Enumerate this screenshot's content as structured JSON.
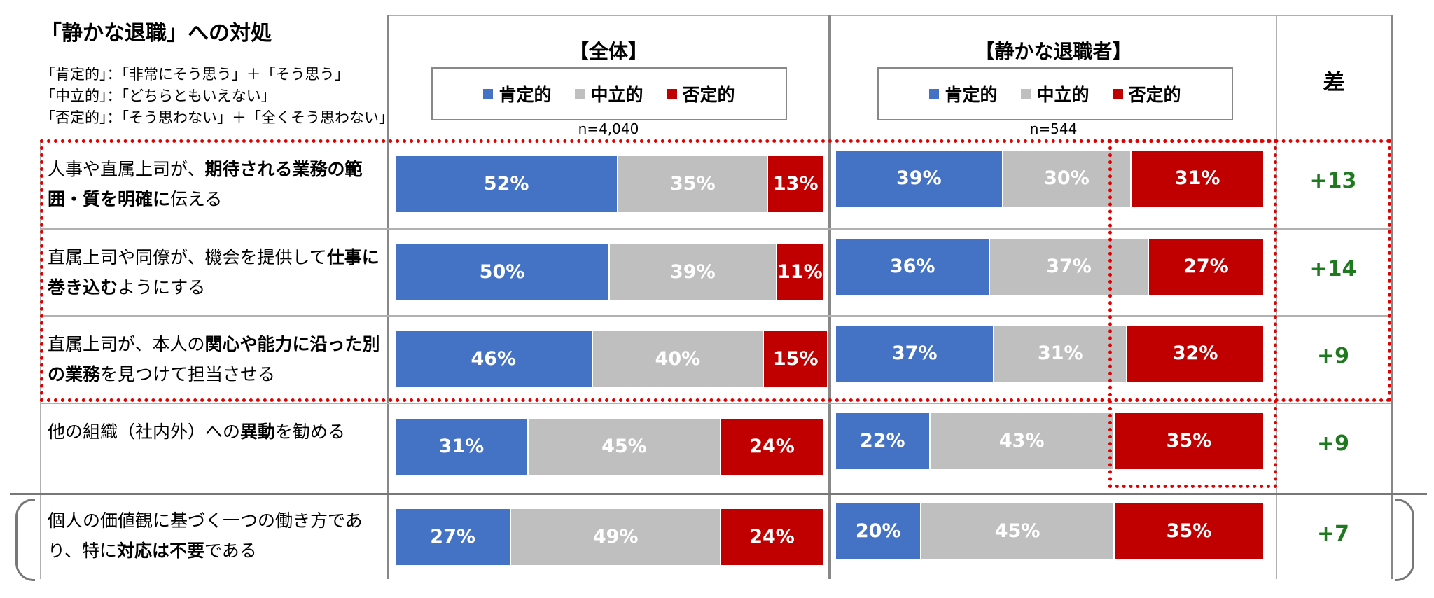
{
  "title": "「静かな退職」への対処",
  "definitions": [
    "「肯定的」：「非常にそう思う」＋「そう思う」",
    "「中立的」：「どちらともいえない」",
    "「否定的」：「そう思わない」＋「全くそう思わない」"
  ],
  "legend": {
    "positive": "肯定的",
    "neutral": "中立的",
    "negative": "否定的"
  },
  "colors": {
    "positive": "#4472c4",
    "neutral": "#bfbfbf",
    "negative": "#c00000",
    "diff": "#1f7a1f",
    "highlight": "#e00000"
  },
  "panels": [
    {
      "title": "【全体】",
      "n": "n=4,040"
    },
    {
      "title": "【静かな退職者】",
      "n": "n=544"
    }
  ],
  "diff_header": "差",
  "rows": [
    {
      "label_parts": [
        [
          "人事や直属上司が、",
          false
        ],
        [
          "期待される業務の",
          true
        ],
        [
          "範囲・質を明確に",
          true
        ],
        [
          "伝える",
          false
        ]
      ]
    },
    {
      "label_parts": [
        [
          "直属上司や同僚が、機会を提供して",
          false
        ],
        [
          "仕事に巻き込む",
          true
        ],
        [
          "ようにする",
          false
        ]
      ]
    },
    {
      "label_parts": [
        [
          "直属上司が、本人の",
          false
        ],
        [
          "関心や能力に沿った別の業務",
          true
        ],
        [
          "を見つけて担当させる",
          false
        ]
      ]
    },
    {
      "label_parts": [
        [
          "他の組織（社内外）への",
          false
        ],
        [
          "異動",
          true
        ],
        [
          "を勧める",
          false
        ]
      ]
    },
    {
      "label_parts": [
        [
          "個人の価値観に基づく一つの働き方であり、特に",
          false
        ],
        [
          "対応は不要",
          true
        ],
        [
          "である",
          false
        ]
      ]
    }
  ],
  "chart_data": {
    "type": "bar",
    "stacked": true,
    "orientation": "horizontal",
    "unit": "%",
    "categories": [
      "人事や直属上司が、期待される業務の範囲・質を明確に伝える",
      "直属上司や同僚が、機会を提供して仕事に巻き込むようにする",
      "直属上司が、本人の関心や能力に沿った別の業務を見つけて担当させる",
      "他の組織（社内外）への異動を勧める",
      "個人の価値観に基づく一つの働き方であり、特に対応は不要である"
    ],
    "panels": [
      {
        "name": "【全体】",
        "n": "n=4,040",
        "series": [
          {
            "name": "肯定的",
            "values": [
              52,
              50,
              46,
              31,
              27
            ]
          },
          {
            "name": "中立的",
            "values": [
              35,
              39,
              40,
              45,
              49
            ]
          },
          {
            "name": "否定的",
            "values": [
              13,
              11,
              15,
              24,
              24
            ]
          }
        ]
      },
      {
        "name": "【静かな退職者】",
        "n": "n=544",
        "series": [
          {
            "name": "肯定的",
            "values": [
              39,
              36,
              37,
              22,
              20
            ]
          },
          {
            "name": "中立的",
            "values": [
              30,
              37,
              31,
              43,
              45
            ]
          },
          {
            "name": "否定的",
            "values": [
              31,
              27,
              32,
              35,
              35
            ]
          }
        ]
      }
    ],
    "diff": {
      "name": "差",
      "values": [
        "+13",
        "+14",
        "+9",
        "+9",
        "+7"
      ]
    }
  }
}
